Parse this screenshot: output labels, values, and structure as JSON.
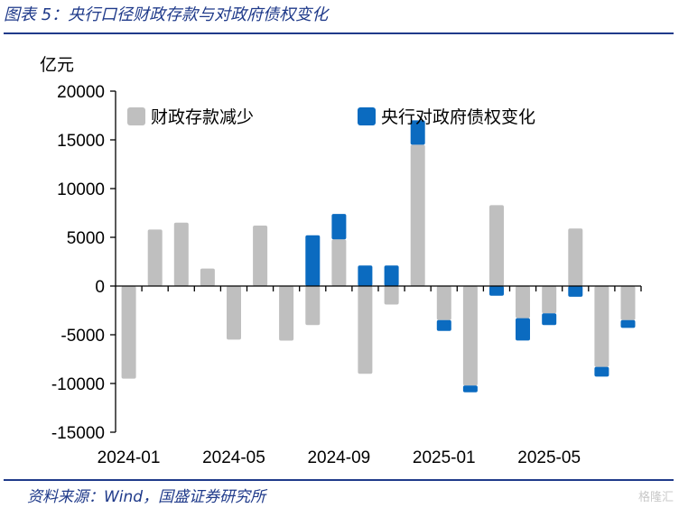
{
  "figure_title": "图表 5：央行口径财政存款与对政府债权变化",
  "source_note": "资料来源：Wind，国盛证券研究所",
  "watermark": "格隆汇",
  "chart_data": {
    "type": "bar",
    "ylabel": "亿元",
    "ylim": [
      -15000,
      20000
    ],
    "yticks": [
      20000,
      15000,
      10000,
      5000,
      0,
      -5000,
      -10000,
      -15000
    ],
    "ytick_labels": [
      "20000",
      "15000",
      "10000",
      "5000",
      "0",
      "-5000",
      "-10000",
      "-15000"
    ],
    "categories": [
      "2024-01",
      "2024-02",
      "2024-03",
      "2024-04",
      "2024-05",
      "2024-06",
      "2024-07",
      "2024-08",
      "2024-09",
      "2024-10",
      "2024-11",
      "2024-12",
      "2025-01",
      "2025-02",
      "2025-03",
      "2025-04",
      "2025-05",
      "2025-06",
      "2025-07",
      "2025-08"
    ],
    "xtick_labels": [
      "2024-01",
      "2024-05",
      "2024-09",
      "2025-01",
      "2025-05"
    ],
    "series": [
      {
        "name": "财政存款减少",
        "color": "#bfbfbf",
        "values": [
          -9500,
          5800,
          6500,
          1800,
          -5500,
          6200,
          -5600,
          -4000,
          4800,
          -9000,
          -1900,
          14500,
          -3500,
          -10200,
          8300,
          -3300,
          -2800,
          5900,
          -8300,
          -3500
        ]
      },
      {
        "name": "央行对政府债权变化",
        "color": "#0b6bc0",
        "values": [
          0,
          0,
          0,
          0,
          0,
          0,
          0,
          5200,
          2600,
          2100,
          2100,
          2500,
          -1100,
          -700,
          -1000,
          -2300,
          -1200,
          -1100,
          -1000,
          -800
        ]
      }
    ],
    "legend_position": "top"
  }
}
